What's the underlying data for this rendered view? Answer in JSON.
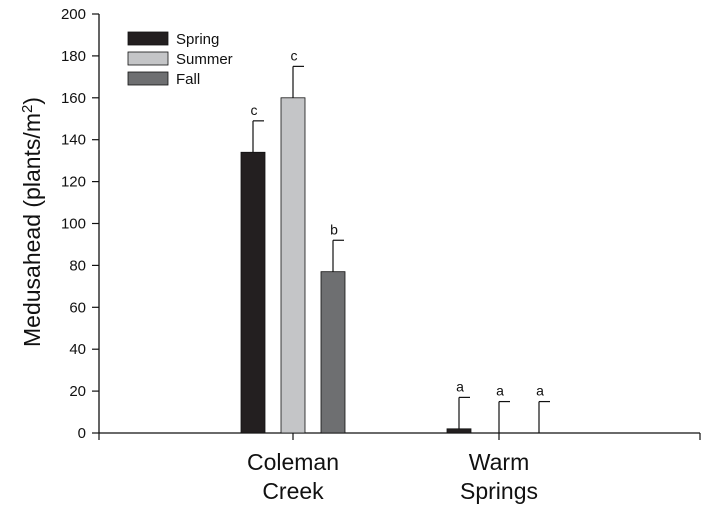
{
  "chart_data": {
    "type": "bar",
    "title": "",
    "xlabel": "",
    "ylabel": "Medusahead (plants/m²)",
    "ylabel_parts": {
      "main": "Medusahead (plants/m",
      "sup": "2",
      "end": ")"
    },
    "ylim": [
      0,
      200
    ],
    "yticks": [
      0,
      20,
      40,
      60,
      80,
      100,
      120,
      140,
      160,
      180,
      200
    ],
    "categories": [
      {
        "lines": [
          "Coleman",
          "Creek"
        ]
      },
      {
        "lines": [
          "Warm",
          "Springs"
        ]
      }
    ],
    "series": [
      {
        "name": "Spring",
        "color": "#231f20",
        "values": [
          134,
          2
        ],
        "errors": [
          15,
          15
        ],
        "letters": [
          "c",
          "a"
        ]
      },
      {
        "name": "Summer",
        "color": "#c4c5c7",
        "values": [
          160,
          0
        ],
        "errors": [
          15,
          15
        ],
        "letters": [
          "c",
          "a"
        ]
      },
      {
        "name": "Fall",
        "color": "#6e6f71",
        "values": [
          77,
          0
        ],
        "errors": [
          15,
          15
        ],
        "letters": [
          "b",
          "a"
        ]
      }
    ],
    "grid": false,
    "legend_position": "top-left"
  }
}
